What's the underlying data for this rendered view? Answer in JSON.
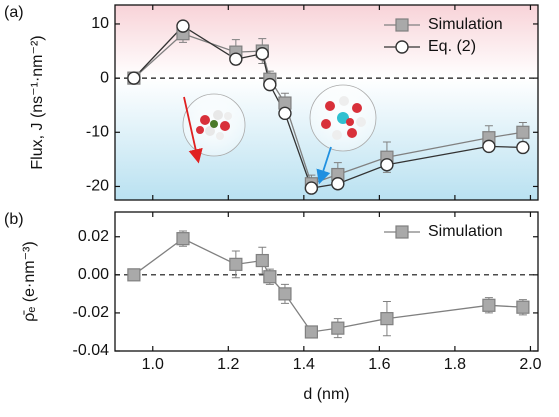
{
  "chart_data": [
    {
      "type": "line",
      "panel_label": "(a)",
      "ylabel": "Flux, J (ns⁻¹·nm⁻²)",
      "x": [
        0.95,
        1.08,
        1.22,
        1.29,
        1.31,
        1.35,
        1.42,
        1.49,
        1.62,
        1.89,
        1.98
      ],
      "series": [
        {
          "name": "Simulation",
          "marker": "square",
          "color": "#808080",
          "fill": "#a9a9a9",
          "values": [
            0,
            8.2,
            4.8,
            5.0,
            -0.2,
            -4.6,
            -19.5,
            -17.8,
            -14.6,
            -11.0,
            -10.0
          ],
          "errors": [
            0.6,
            1.6,
            2.3,
            2.3,
            1.5,
            1.8,
            1.6,
            2.2,
            2.8,
            2.2,
            1.8
          ]
        },
        {
          "name": "Eq. (2)",
          "marker": "circle",
          "color": "#333333",
          "fill": "#ffffff",
          "values": [
            0,
            9.6,
            3.5,
            4.5,
            -1.2,
            -6.5,
            -20.3,
            -19.5,
            -16.0,
            -12.6,
            -12.8
          ]
        }
      ],
      "xlim": [
        0.9,
        2.02
      ],
      "ylim": [
        -22.5,
        13.5
      ],
      "yticks": [
        -20,
        -10,
        0,
        10
      ],
      "hline": 0,
      "background_colors": [
        "#f8d3d8",
        "#ffffff",
        "#b9e1f1"
      ],
      "legend": "top-right"
    },
    {
      "type": "line",
      "panel_label": "(b)",
      "ylabel": "ρ̄ₑ (e·nm⁻³)",
      "xlabel": "d (nm)",
      "x": [
        0.95,
        1.08,
        1.22,
        1.29,
        1.31,
        1.35,
        1.42,
        1.49,
        1.62,
        1.89,
        1.98
      ],
      "series": [
        {
          "name": "Simulation",
          "marker": "square",
          "color": "#808080",
          "fill": "#a9a9a9",
          "values": [
            0,
            0.019,
            0.0055,
            0.0075,
            -0.001,
            -0.01,
            -0.03,
            -0.028,
            -0.023,
            -0.016,
            -0.017
          ],
          "errors": [
            0.001,
            0.004,
            0.007,
            0.007,
            0.004,
            0.005,
            0.003,
            0.005,
            0.009,
            0.004,
            0.004
          ]
        }
      ],
      "xlim": [
        0.9,
        2.02
      ],
      "ylim": [
        -0.04,
        0.033
      ],
      "xticks": [
        {
          "value": 1.0,
          "label": "1.0"
        },
        1.2,
        1.4,
        1.6,
        1.8,
        {
          "value": 2.0,
          "label": "2.0"
        }
      ],
      "yticks": [
        {
          "value": -0.04,
          "label": "-0.04"
        },
        {
          "value": -0.02,
          "label": "-0.02"
        },
        {
          "value": 0,
          "label": "0.00"
        },
        0.02
      ],
      "hline": 0,
      "legend": "top-right"
    }
  ]
}
